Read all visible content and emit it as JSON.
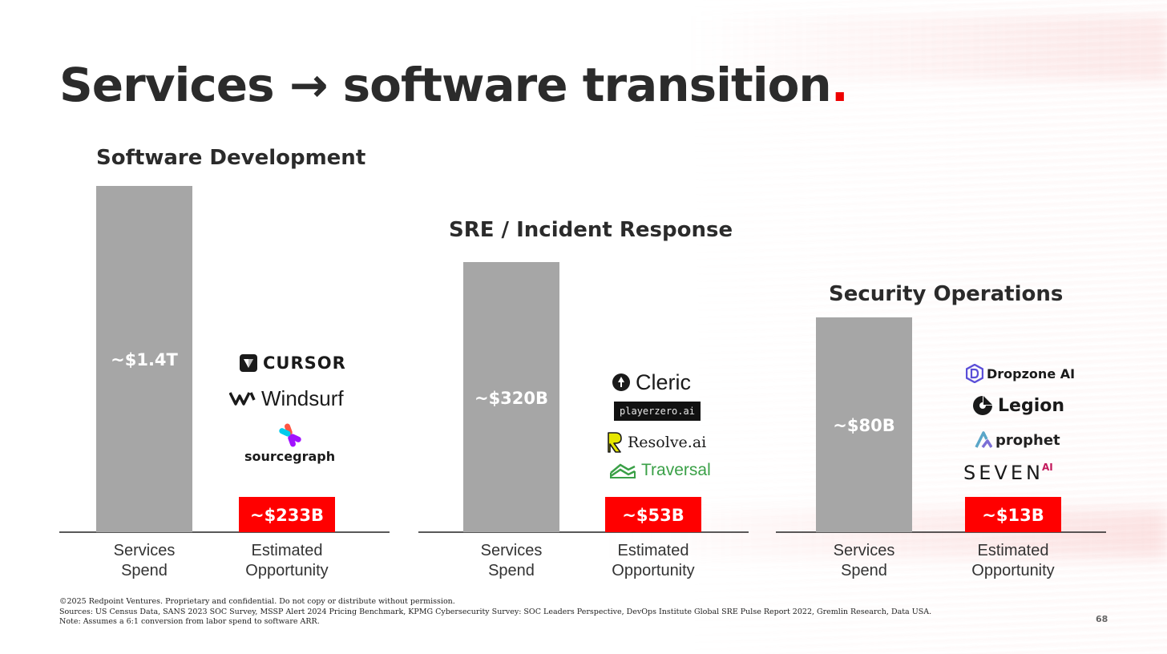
{
  "slide": {
    "title": "Services → software transition",
    "title_dot": ".",
    "page_number": "68"
  },
  "chart_data": [
    {
      "type": "bar",
      "title": "Software Development",
      "categories": [
        "Services\nSpend",
        "Estimated\nOpportunity"
      ],
      "values": [
        1400,
        233
      ],
      "unit": "USD billions",
      "value_labels": [
        "~$1.4T",
        "~$233B"
      ],
      "colors": [
        "#a6a6a6",
        "#ff0000"
      ]
    },
    {
      "type": "bar",
      "title": "SRE / Incident Response",
      "categories": [
        "Services\nSpend",
        "Estimated\nOpportunity"
      ],
      "values": [
        320,
        53
      ],
      "unit": "USD billions",
      "value_labels": [
        "~$320B",
        "~$53B"
      ],
      "colors": [
        "#a6a6a6",
        "#ff0000"
      ]
    },
    {
      "type": "bar",
      "title": "Security Operations",
      "categories": [
        "Services\nSpend",
        "Estimated\nOpportunity"
      ],
      "values": [
        80,
        13
      ],
      "unit": "USD billions",
      "value_labels": [
        "~$80B",
        "~$13B"
      ],
      "colors": [
        "#a6a6a6",
        "#ff0000"
      ]
    }
  ],
  "logos": {
    "software_development": [
      "CURSOR",
      "Windsurf",
      "sourcegraph"
    ],
    "sre": [
      "Cleric",
      "playerzero.ai",
      "Resolve.ai",
      "Traversal"
    ],
    "security": [
      "Dropzone AI",
      "Legion",
      "prophet",
      "SEVEN",
      "AI"
    ]
  },
  "colors": {
    "accent": "#ee0000",
    "services_bar": "#a6a6a6",
    "opportunity_bar": "#ff0000",
    "text": "#2b2b2b"
  },
  "footer": {
    "copyright": "©2025 Redpoint Ventures. Proprietary and confidential. Do not copy or distribute without permission.",
    "sources": "Sources: US Census Data, SANS 2023 SOC Survey, MSSP Alert 2024 Pricing Benchmark, KPMG Cybersecurity Survey: SOC Leaders Perspective, DevOps Institute Global SRE Pulse Report 2022, Gremlin Research, Data USA.",
    "note": "Note: Assumes a 6:1 conversion from labor spend to software ARR."
  }
}
